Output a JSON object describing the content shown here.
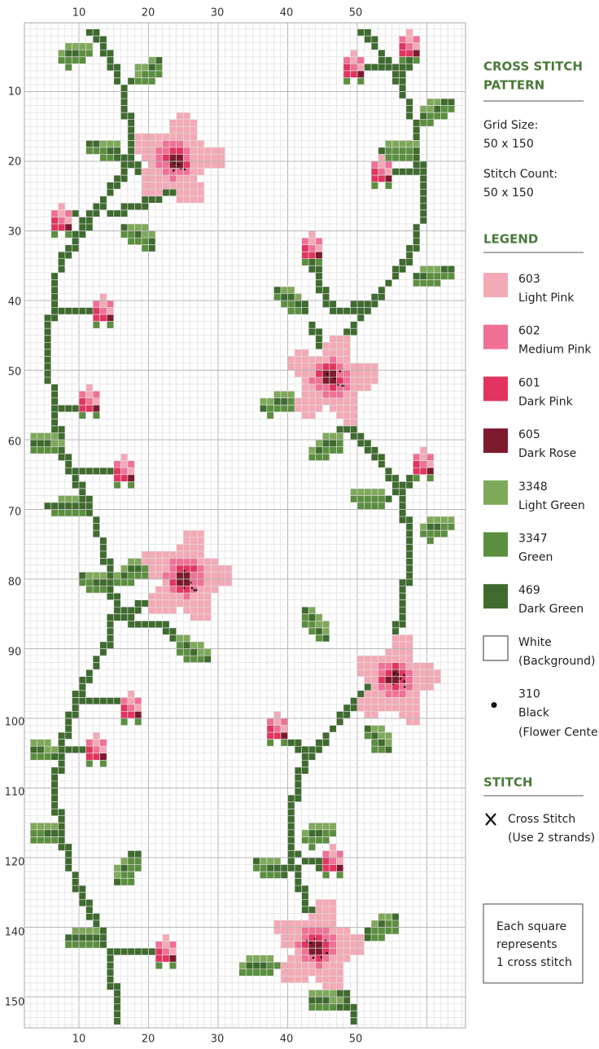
{
  "axes": {
    "top": [
      "10",
      "20",
      "30",
      "40",
      "50"
    ],
    "bottom": [
      "10",
      "20",
      "30",
      "40",
      "50"
    ],
    "left": [
      "10",
      "20",
      "30",
      "40",
      "50",
      "60",
      "70",
      "80",
      "90",
      "100",
      "110",
      "120",
      "140",
      "150"
    ]
  },
  "panel": {
    "title": [
      "CROSS STITCH",
      "PATTERN"
    ],
    "grid_size_label": "Grid Size:",
    "grid_size": "50 x 150",
    "stitch_count_label": "Stitch Count:",
    "stitch_count": "50 x 150",
    "legend_title": "LEGEND",
    "legend": [
      {
        "code": "603",
        "name": "Light Pink",
        "color": "#f4aab6"
      },
      {
        "code": "602",
        "name": "Medium Pink",
        "color": "#f07096"
      },
      {
        "code": "601",
        "name": "Dark Pink",
        "color": "#e2345f"
      },
      {
        "code": "605",
        "name": "Dark Rose",
        "color": "#7d1a2e"
      },
      {
        "code": "3348",
        "name": "Light Green",
        "color": "#7fa95a"
      },
      {
        "code": "3347",
        "name": "Green",
        "color": "#5b8f3f"
      },
      {
        "code": "469",
        "name": "Dark Green",
        "color": "#3f6b2f"
      },
      {
        "code": "White",
        "name": "(Background)",
        "color": "#ffffff"
      },
      {
        "code": "310",
        "name": "Black",
        "note": "(Flower Center)",
        "color": "#111111"
      }
    ],
    "stitch_title": "STITCH",
    "stitch": "Cross Stitch",
    "stitch_note": "(Use 2 strands)",
    "note": [
      "Each square",
      "represents",
      "1 cross stitch"
    ]
  }
}
